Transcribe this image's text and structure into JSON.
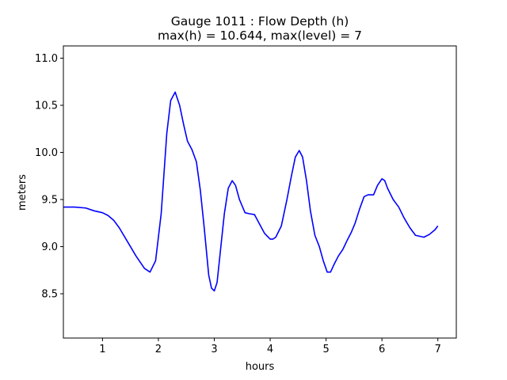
{
  "chart_data": {
    "type": "line",
    "title_line1": "Gauge 1011 : Flow Depth (h)",
    "title_line2": "max(h) =  10.644,    max(level) = 7",
    "xlabel": "hours",
    "ylabel": "meters",
    "xlim": [
      0.3,
      7.33
    ],
    "ylim": [
      8.03,
      11.13
    ],
    "xticks": [
      1,
      2,
      3,
      4,
      5,
      6,
      7
    ],
    "xtick_labels": [
      "1",
      "2",
      "3",
      "4",
      "5",
      "6",
      "7"
    ],
    "yticks": [
      8.5,
      9.0,
      9.5,
      10.0,
      10.5,
      11.0
    ],
    "ytick_labels": [
      "8.5",
      "9.0",
      "9.5",
      "10.0",
      "10.5",
      "11.0"
    ],
    "grid": false,
    "series": [
      {
        "color": "#0000ff",
        "x": [
          0.3,
          0.5,
          0.7,
          0.85,
          1.0,
          1.1,
          1.2,
          1.3,
          1.45,
          1.6,
          1.75,
          1.85,
          1.95,
          2.05,
          2.15,
          2.22,
          2.3,
          2.38,
          2.45,
          2.52,
          2.6,
          2.68,
          2.75,
          2.82,
          2.9,
          2.95,
          3.0,
          3.05,
          3.1,
          3.18,
          3.25,
          3.32,
          3.38,
          3.45,
          3.55,
          3.62,
          3.72,
          3.8,
          3.9,
          4.0,
          4.05,
          4.1,
          4.2,
          4.3,
          4.38,
          4.45,
          4.52,
          4.58,
          4.65,
          4.72,
          4.8,
          4.88,
          4.95,
          5.02,
          5.08,
          5.15,
          5.22,
          5.3,
          5.38,
          5.45,
          5.52,
          5.6,
          5.68,
          5.75,
          5.85,
          5.92,
          6.0,
          6.05,
          6.1,
          6.2,
          6.3,
          6.4,
          6.5,
          6.6,
          6.75,
          6.85,
          6.95,
          7.0
        ],
        "y": [
          9.42,
          9.42,
          9.41,
          9.38,
          9.36,
          9.33,
          9.28,
          9.2,
          9.05,
          8.9,
          8.77,
          8.73,
          8.85,
          9.35,
          10.2,
          10.55,
          10.64,
          10.5,
          10.3,
          10.12,
          10.03,
          9.9,
          9.6,
          9.2,
          8.7,
          8.56,
          8.53,
          8.62,
          8.9,
          9.35,
          9.62,
          9.7,
          9.65,
          9.5,
          9.36,
          9.35,
          9.34,
          9.25,
          9.14,
          9.08,
          9.08,
          9.1,
          9.22,
          9.5,
          9.75,
          9.95,
          10.02,
          9.95,
          9.7,
          9.38,
          9.12,
          9.0,
          8.85,
          8.73,
          8.73,
          8.82,
          8.9,
          8.97,
          9.07,
          9.15,
          9.25,
          9.4,
          9.53,
          9.55,
          9.55,
          9.65,
          9.72,
          9.7,
          9.62,
          9.5,
          9.42,
          9.3,
          9.2,
          9.12,
          9.1,
          9.13,
          9.18,
          9.22
        ]
      }
    ]
  }
}
